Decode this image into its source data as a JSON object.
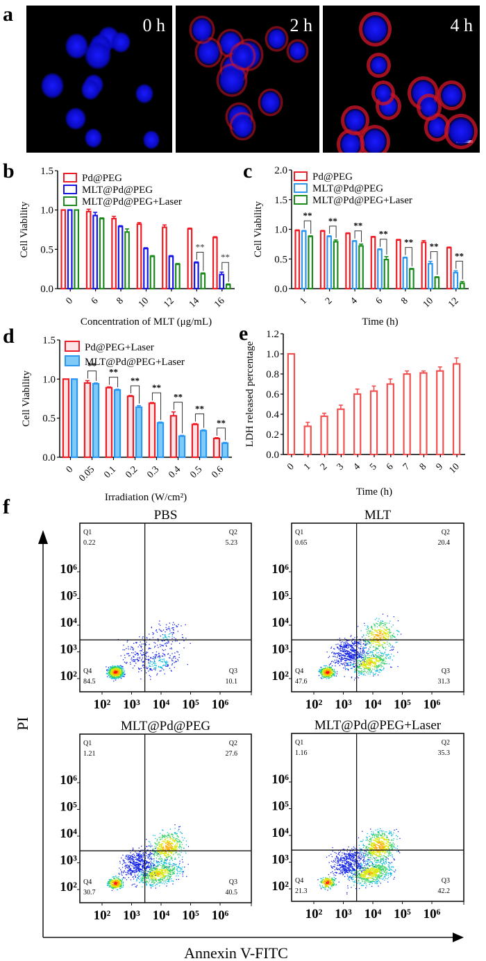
{
  "panel_a": {
    "letter": "a",
    "images": [
      {
        "label": "0 h",
        "red_intensity": 0.0
      },
      {
        "label": "2 h",
        "red_intensity": 0.5
      },
      {
        "label": "4 h",
        "red_intensity": 1.0
      }
    ],
    "scale_bar": true
  },
  "colors": {
    "red": "#ee1c25",
    "blue": "#1414e6",
    "lightblue": "#2a96f0",
    "green": "#1a8a1a",
    "salmon": "#f05050"
  },
  "chart_data": [
    {
      "id": "b",
      "letter": "b",
      "type": "bar",
      "title": "",
      "xlabel": "Concentration of MLT (μg/mL)",
      "ylabel": "Cell Viability",
      "ylim": [
        0,
        1.5
      ],
      "yticks": [
        "0.0",
        "0.5",
        "1.0",
        "1.5"
      ],
      "categories": [
        "0",
        "6",
        "8",
        "10",
        "12",
        "14",
        "16"
      ],
      "series": [
        {
          "name": "Pd@PEG",
          "color": "#ee1c25",
          "fill": "#ffffff",
          "values": [
            1.0,
            0.98,
            0.89,
            0.82,
            0.78,
            0.76,
            0.65
          ],
          "errors": [
            0.0,
            0.03,
            0.03,
            0.02,
            0.03,
            0.01,
            0.01
          ]
        },
        {
          "name": "MLT@Pd@PEG",
          "color": "#1414e6",
          "fill": "#ffffff",
          "values": [
            1.0,
            0.93,
            0.79,
            0.51,
            0.41,
            0.33,
            0.18
          ],
          "errors": [
            0.0,
            0.04,
            0.01,
            0.01,
            0.01,
            0.01,
            0.03
          ]
        },
        {
          "name": "MLT@Pd@PEG+Laser",
          "color": "#1a8a1a",
          "fill": "#ffffff",
          "values": [
            1.0,
            0.89,
            0.72,
            0.41,
            0.31,
            0.19,
            0.05
          ],
          "errors": [
            0.0,
            0.01,
            0.04,
            0.01,
            0.01,
            0.01,
            0.01
          ]
        }
      ],
      "significance": [
        {
          "category": "14",
          "between": [
            1,
            2
          ],
          "label": "**"
        },
        {
          "category": "16",
          "between": [
            1,
            2
          ],
          "label": "**"
        }
      ],
      "legend": "top-left"
    },
    {
      "id": "c",
      "letter": "c",
      "type": "bar",
      "title": "",
      "xlabel": "Time (h)",
      "ylabel": "Cell Viability",
      "ylim": [
        0,
        2.0
      ],
      "yticks": [
        "0.0",
        "0.5",
        "1.0",
        "1.5",
        "2.0"
      ],
      "categories": [
        "1",
        "2",
        "4",
        "6",
        "8",
        "10",
        "12"
      ],
      "series": [
        {
          "name": "Pd@PEG",
          "color": "#ee1c25",
          "fill": "#ffffff",
          "values": [
            0.98,
            0.97,
            0.93,
            0.87,
            0.82,
            0.78,
            0.69
          ],
          "errors": [
            0.01,
            0.01,
            0.01,
            0.01,
            0.01,
            0.03,
            0.01
          ]
        },
        {
          "name": "MLT@Pd@PEG",
          "color": "#2a96f0",
          "fill": "#ffffff",
          "values": [
            0.97,
            0.88,
            0.8,
            0.66,
            0.52,
            0.42,
            0.27
          ],
          "errors": [
            0.01,
            0.01,
            0.01,
            0.01,
            0.01,
            0.04,
            0.03
          ]
        },
        {
          "name": "MLT@Pd@PEG+Laser",
          "color": "#1a8a1a",
          "fill": "#ffffff",
          "values": [
            0.88,
            0.79,
            0.72,
            0.49,
            0.33,
            0.19,
            0.09
          ],
          "errors": [
            0.01,
            0.03,
            0.03,
            0.05,
            0.01,
            0.01,
            0.03
          ]
        }
      ],
      "significance": [
        {
          "category": "1",
          "between": [
            1,
            2
          ],
          "label": "**"
        },
        {
          "category": "2",
          "between": [
            1,
            2
          ],
          "label": "**"
        },
        {
          "category": "4",
          "between": [
            1,
            2
          ],
          "label": "**"
        },
        {
          "category": "6",
          "between": [
            1,
            2
          ],
          "label": "**"
        },
        {
          "category": "8",
          "between": [
            1,
            2
          ],
          "label": "**"
        },
        {
          "category": "10",
          "between": [
            1,
            2
          ],
          "label": "**"
        },
        {
          "category": "12",
          "between": [
            1,
            2
          ],
          "label": "**"
        }
      ],
      "legend": "top-left"
    },
    {
      "id": "d",
      "letter": "d",
      "type": "bar",
      "title": "",
      "xlabel": "Irradiation (W/cm²)",
      "ylabel": "Cell Viability",
      "ylim": [
        0,
        1.5
      ],
      "yticks": [
        "0.0",
        "0.5",
        "1.0",
        "1.5"
      ],
      "categories": [
        "0",
        "0.05",
        "0.1",
        "0.2",
        "0.3",
        "0.4",
        "0.5",
        "0.6"
      ],
      "series": [
        {
          "name": "Pd@PEG+Laser",
          "color": "#ee1c25",
          "fill": "#fde4e6",
          "values": [
            1.0,
            0.95,
            0.89,
            0.78,
            0.69,
            0.53,
            0.42,
            0.24
          ],
          "errors": [
            0.0,
            0.03,
            0.01,
            0.01,
            0.01,
            0.05,
            0.01,
            0.01
          ]
        },
        {
          "name": "MLT@Pd@PEG+Laser",
          "color": "#2a96f0",
          "fill": "#7fcaf7",
          "values": [
            1.0,
            0.94,
            0.86,
            0.64,
            0.44,
            0.27,
            0.34,
            0.18
          ],
          "errors": [
            0.0,
            0.01,
            0.01,
            0.02,
            0.01,
            0.01,
            0.01,
            0.01
          ]
        }
      ],
      "significance": [
        {
          "category": "0.05",
          "between": [
            0,
            1
          ],
          "label": "**"
        },
        {
          "category": "0.1",
          "between": [
            0,
            1
          ],
          "label": "**"
        },
        {
          "category": "0.2",
          "between": [
            0,
            1
          ],
          "label": "**"
        },
        {
          "category": "0.3",
          "between": [
            0,
            1
          ],
          "label": "**"
        },
        {
          "category": "0.4",
          "between": [
            0,
            1
          ],
          "label": "**"
        },
        {
          "category": "0.5",
          "between": [
            0,
            1
          ],
          "label": "**"
        },
        {
          "category": "0.6",
          "between": [
            0,
            1
          ],
          "label": "**"
        }
      ],
      "legend": "top-left"
    },
    {
      "id": "e",
      "letter": "e",
      "type": "bar",
      "title": "",
      "xlabel": "Time (h)",
      "ylabel": "LDH released percentage",
      "ylim": [
        0,
        1.2
      ],
      "yticks": [
        "0.0",
        "0.2",
        "0.4",
        "0.6",
        "0.8",
        "1.0",
        "1.2"
      ],
      "categories": [
        "0",
        "1",
        "2",
        "3",
        "4",
        "5",
        "6",
        "7",
        "8",
        "9",
        "10"
      ],
      "series": [
        {
          "name": "LDH",
          "color": "#f05050",
          "fill": "#ffffff",
          "values": [
            1.0,
            0.28,
            0.38,
            0.45,
            0.6,
            0.63,
            0.7,
            0.8,
            0.81,
            0.83,
            0.9
          ],
          "errors": [
            0.0,
            0.04,
            0.03,
            0.04,
            0.05,
            0.05,
            0.05,
            0.03,
            0.02,
            0.04,
            0.06
          ]
        }
      ],
      "significance": [],
      "legend": "none"
    },
    {
      "id": "f",
      "letter": "f",
      "type": "scatter",
      "xlabel": "Annexin V-FITC",
      "ylabel": "PI",
      "xticks": [
        "10²",
        "10³",
        "10⁴",
        "10⁵",
        "10⁶"
      ],
      "yticks": [
        "10²",
        "10³",
        "10⁴",
        "10⁵",
        "10⁶"
      ],
      "panels": [
        {
          "title": "PBS",
          "quadrants": {
            "Q1": "0.22",
            "Q2": "5.23",
            "Q3": "10.1",
            "Q4": "84.5"
          }
        },
        {
          "title": "MLT",
          "quadrants": {
            "Q1": "0.65",
            "Q2": "20.4",
            "Q3": "31.3",
            "Q4": "47.6"
          }
        },
        {
          "title": "MLT@Pd@PEG",
          "quadrants": {
            "Q1": "1.21",
            "Q2": "27.6",
            "Q3": "40.5",
            "Q4": "30.7"
          }
        },
        {
          "title": "MLT@Pd@PEG+Laser",
          "quadrants": {
            "Q1": "1.16",
            "Q2": "35.3",
            "Q3": "42.2",
            "Q4": "21.3"
          }
        }
      ]
    }
  ]
}
